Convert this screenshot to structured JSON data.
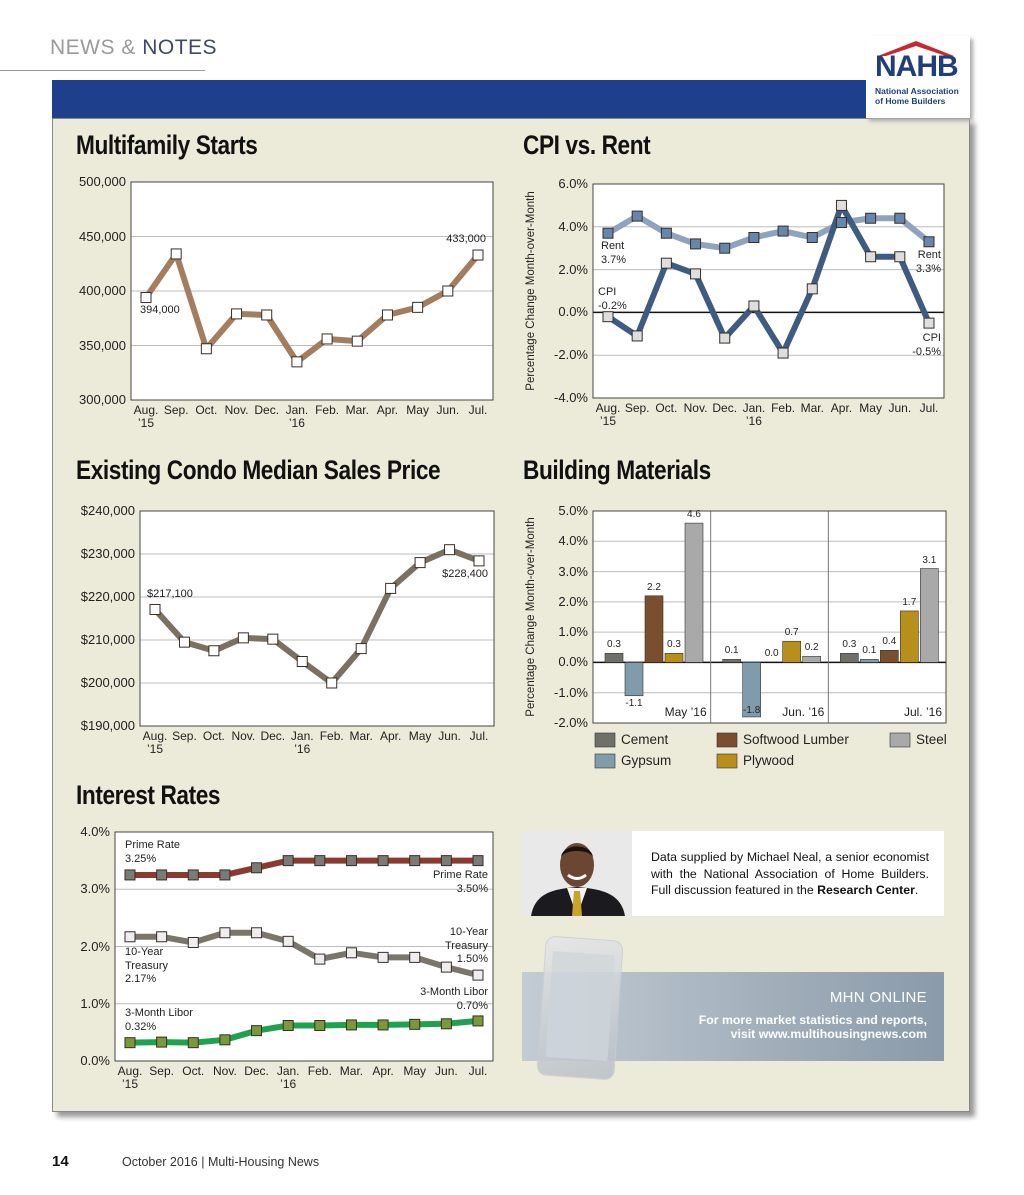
{
  "header": {
    "section_prefix": "NEWS &",
    "section_name": "NOTES"
  },
  "logo": {
    "name": "NAHB",
    "full_name": "National Association of Home Builders"
  },
  "chart_data": [
    {
      "type": "line",
      "title": "Multifamily Starts",
      "categories": [
        "Aug. ’15",
        "Sep.",
        "Oct.",
        "Nov.",
        "Dec.",
        "Jan. ’16",
        "Feb.",
        "Mar.",
        "Apr.",
        "May",
        "Jun.",
        "Jul."
      ],
      "values": [
        394000,
        434000,
        347000,
        379000,
        378000,
        335000,
        356000,
        354000,
        378000,
        385000,
        400000,
        433000
      ],
      "value_labels": [
        "394,000",
        null,
        null,
        null,
        null,
        null,
        null,
        null,
        null,
        null,
        null,
        "433,000"
      ],
      "color": "#a47c5e",
      "marker_color": "#ffffff",
      "ylim": [
        300000,
        500000
      ],
      "yticks": [
        {
          "value": 300000,
          "label": "300,000"
        },
        {
          "value": 350000,
          "label": "350,000"
        },
        {
          "value": 400000,
          "label": "400,000"
        },
        {
          "value": 450000,
          "label": "450,000"
        },
        {
          "value": 500000,
          "label": "500,000"
        }
      ],
      "grid": true
    },
    {
      "type": "line",
      "title": "CPI vs. Rent",
      "y_label": "Percentage Change Month-over-Month",
      "categories": [
        "Aug. ’15",
        "Sep.",
        "Oct.",
        "Nov.",
        "Dec.",
        "Jan. ’16",
        "Feb.",
        "Mar.",
        "Apr.",
        "May",
        "Jun.",
        "Jul."
      ],
      "series": [
        {
          "name": "Rent",
          "color": "#8fa3be",
          "marker_color": "#6687ad",
          "values": [
            3.7,
            4.5,
            3.7,
            3.2,
            3.0,
            3.5,
            3.8,
            3.5,
            4.2,
            4.4,
            4.4,
            3.3
          ],
          "value_labels": [
            "3.7%",
            null,
            null,
            null,
            null,
            null,
            null,
            null,
            null,
            null,
            null,
            "3.3%"
          ]
        },
        {
          "name": "CPI",
          "color": "#3e5b82",
          "marker_color": "#dedede",
          "values": [
            -0.2,
            -1.1,
            2.3,
            1.8,
            -1.2,
            0.3,
            -1.9,
            1.1,
            5.0,
            2.6,
            2.6,
            -0.5
          ],
          "value_labels": [
            "-0.2%",
            null,
            null,
            null,
            null,
            null,
            null,
            null,
            null,
            null,
            null,
            "-0.5%"
          ]
        }
      ],
      "ylim": [
        -4,
        6
      ],
      "yticks": [
        {
          "value": -4,
          "label": "-4.0%"
        },
        {
          "value": -2,
          "label": "-2.0%"
        },
        {
          "value": 0,
          "label": "0.0%"
        },
        {
          "value": 2,
          "label": "2.0%"
        },
        {
          "value": 4,
          "label": "4.0%"
        },
        {
          "value": 6,
          "label": "6.0%"
        }
      ],
      "grid": true,
      "zero_line": true
    },
    {
      "type": "line",
      "title": "Existing Condo Median Sales Price",
      "categories": [
        "Aug. ’15",
        "Sep.",
        "Oct.",
        "Nov.",
        "Dec.",
        "Jan. ’16",
        "Feb.",
        "Mar.",
        "Apr.",
        "May",
        "Jun.",
        "Jul."
      ],
      "values": [
        217100,
        209500,
        207500,
        210500,
        210200,
        205000,
        200000,
        208000,
        222000,
        228000,
        231000,
        228400
      ],
      "value_labels": [
        "$217,100",
        null,
        null,
        null,
        null,
        null,
        null,
        null,
        null,
        null,
        null,
        "$228,400"
      ],
      "color": "#7b7062",
      "marker_color": "#ffffff",
      "ylim": [
        190000,
        240000
      ],
      "yticks": [
        {
          "value": 190000,
          "label": "$190,000"
        },
        {
          "value": 200000,
          "label": "$200,000"
        },
        {
          "value": 210000,
          "label": "$210,000"
        },
        {
          "value": 220000,
          "label": "$220,000"
        },
        {
          "value": 230000,
          "label": "$230,000"
        },
        {
          "value": 240000,
          "label": "$240,000"
        }
      ],
      "grid": true
    },
    {
      "type": "bar",
      "title": "Building Materials",
      "y_label": "Percentage Change Month-over-Month",
      "categories": [
        "May ’16",
        "Jun. ’16",
        "Jul. ’16"
      ],
      "series": [
        {
          "name": "Cement",
          "color": "#70706b",
          "values": [
            0.3,
            0.1,
            0.3
          ],
          "value_labels": [
            "0.3",
            "0.1",
            "0.3"
          ]
        },
        {
          "name": "Gypsum",
          "color": "#7f9bac",
          "values": [
            -1.1,
            -1.8,
            0.1
          ],
          "value_labels": [
            "-1.1",
            "-1.8",
            "0.1"
          ]
        },
        {
          "name": "Softwood Lumber",
          "color": "#7b4f2d",
          "values": [
            2.2,
            0.0,
            0.4
          ],
          "value_labels": [
            "2.2",
            "0.0",
            "0.4"
          ]
        },
        {
          "name": "Plywood",
          "color": "#b88f1b",
          "values": [
            0.3,
            0.7,
            1.7
          ],
          "value_labels": [
            "0.3",
            "0.7",
            "1.7"
          ]
        },
        {
          "name": "Steel",
          "color": "#a9a9a9",
          "values": [
            4.6,
            0.2,
            3.1
          ],
          "value_labels": [
            "4.6",
            "0.2",
            "3.1"
          ]
        }
      ],
      "ylim": [
        -2,
        5
      ],
      "yticks": [
        {
          "value": -2,
          "label": "-2.0%"
        },
        {
          "value": -1,
          "label": "-1.0%"
        },
        {
          "value": 0,
          "label": "0.0%"
        },
        {
          "value": 1,
          "label": "1.0%"
        },
        {
          "value": 2,
          "label": "2.0%"
        },
        {
          "value": 3,
          "label": "3.0%"
        },
        {
          "value": 4,
          "label": "4.0%"
        },
        {
          "value": 5,
          "label": "5.0%"
        }
      ],
      "grid": true,
      "zero_line": true
    },
    {
      "type": "line",
      "title": "Interest Rates",
      "categories": [
        "Aug. ’15",
        "Sep.",
        "Oct.",
        "Nov.",
        "Dec.",
        "Jan. ’16",
        "Feb.",
        "Mar.",
        "Apr.",
        "May",
        "Jun.",
        "Jul."
      ],
      "series": [
        {
          "name": "Prime Rate",
          "color": "#8b3a2f",
          "marker_color": "#7b7a74",
          "values": [
            3.25,
            3.25,
            3.25,
            3.25,
            3.375,
            3.5,
            3.5,
            3.5,
            3.5,
            3.5,
            3.5,
            3.5
          ],
          "value_labels": [
            "3.25%",
            null,
            null,
            null,
            null,
            null,
            null,
            null,
            null,
            null,
            null,
            "3.50%"
          ]
        },
        {
          "name": "10-Year Treasury",
          "color": "#7b766c",
          "marker_color": "#eeeeee",
          "values": [
            2.17,
            2.17,
            2.07,
            2.24,
            2.24,
            2.09,
            1.78,
            1.89,
            1.81,
            1.81,
            1.64,
            1.5
          ],
          "value_labels": [
            "2.17%",
            null,
            null,
            null,
            null,
            null,
            null,
            null,
            null,
            null,
            null,
            "1.50%"
          ]
        },
        {
          "name": "3-Month Libor",
          "color": "#1fa24d",
          "marker_color": "#7a9a3a",
          "values": [
            0.32,
            0.33,
            0.32,
            0.37,
            0.53,
            0.62,
            0.62,
            0.63,
            0.63,
            0.64,
            0.65,
            0.7
          ],
          "value_labels": [
            "0.32%",
            null,
            null,
            null,
            null,
            null,
            null,
            null,
            null,
            null,
            null,
            "0.70%"
          ]
        }
      ],
      "ylim": [
        0,
        4
      ],
      "yticks": [
        {
          "value": 0,
          "label": "0.0%"
        },
        {
          "value": 1,
          "label": "1.0%"
        },
        {
          "value": 2,
          "label": "2.0%"
        },
        {
          "value": 3,
          "label": "3.0%"
        },
        {
          "value": 4,
          "label": "4.0%"
        }
      ],
      "grid": true
    }
  ],
  "credit": {
    "text": "Data supplied by Michael Neal, a senior economist with the National Association of Home Builders. Full discussion featured in the",
    "link": "Research Center",
    "end": "."
  },
  "promo": {
    "title": "MHN ONLINE",
    "text": "For more market statistics and reports, visit www.multihousingnews.com"
  },
  "footer": {
    "page": "14",
    "text": "October 2016 | Multi-Housing News"
  }
}
